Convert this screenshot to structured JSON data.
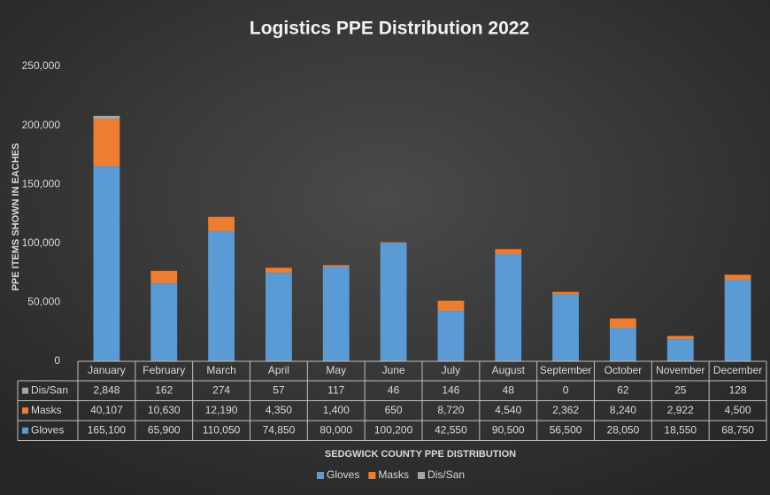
{
  "chart_data": {
    "type": "bar",
    "stacked": true,
    "title": "Logistics PPE Distribution 2022",
    "y_label": "PPE ITEMS SHOWN IN EACHES",
    "x_label": "SEDGWICK COUNTY PPE DISTRIBUTION",
    "categories": [
      "January",
      "February",
      "March",
      "April",
      "May",
      "June",
      "July",
      "August",
      "September",
      "October",
      "November",
      "December"
    ],
    "series": [
      {
        "name": "Gloves",
        "color": "#5b9bd5",
        "values": [
          165100,
          65900,
          110050,
          74850,
          80000,
          100200,
          42550,
          90500,
          56500,
          28050,
          18550,
          68750
        ],
        "value_labels": [
          "165,100",
          "65,900",
          "110,050",
          "74,850",
          "80,000",
          "100,200",
          "42,550",
          "90,500",
          "56,500",
          "28,050",
          "18,550",
          "68,750"
        ]
      },
      {
        "name": "Masks",
        "color": "#ed7d31",
        "values": [
          40107,
          10630,
          12190,
          4350,
          1400,
          650,
          8720,
          4540,
          2362,
          8240,
          2922,
          4500
        ],
        "value_labels": [
          "40,107",
          "10,630",
          "12,190",
          "4,350",
          "1,400",
          "650",
          "8,720",
          "4,540",
          "2,362",
          "8,240",
          "2,922",
          "4,500"
        ]
      },
      {
        "name": "Dis/San",
        "color": "#a5a5a5",
        "values": [
          2848,
          162,
          274,
          57,
          117,
          46,
          146,
          48,
          0,
          62,
          25,
          128
        ],
        "value_labels": [
          "2,848",
          "162",
          "274",
          "57",
          "117",
          "46",
          "146",
          "48",
          "0",
          "62",
          "25",
          "128"
        ]
      }
    ],
    "ylim": [
      0,
      250000
    ],
    "yticks": [
      0,
      {
        "value": 50000,
        "label": "50,000"
      },
      {
        "value": 100000,
        "label": "100,000"
      },
      {
        "value": 150000,
        "label": "150,000"
      },
      {
        "value": 200000,
        "label": "200,000"
      },
      {
        "value": 250000,
        "label": "250,000"
      }
    ],
    "legend": "bottom",
    "data_table": true
  }
}
